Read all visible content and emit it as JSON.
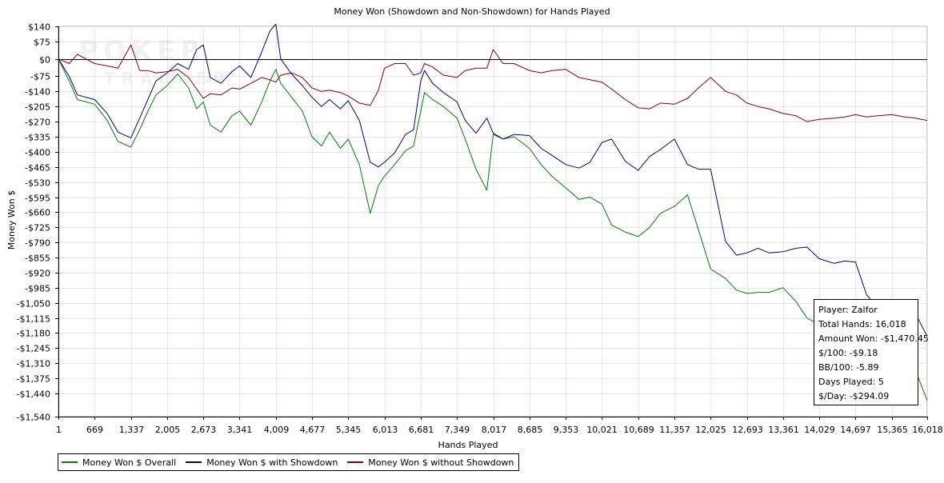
{
  "chart_data": {
    "type": "line",
    "title": "Money Won (Showdown and Non-Showdown) for Hands Played",
    "xlabel": "Hands Played",
    "ylabel": "Money Won $",
    "xlim": [
      1,
      16018
    ],
    "ylim": [
      -1540,
      140
    ],
    "x_ticks": [
      1,
      669,
      1337,
      2005,
      2673,
      3341,
      4009,
      4677,
      5345,
      6013,
      6681,
      7349,
      8017,
      8685,
      9353,
      10021,
      10689,
      11357,
      12025,
      12693,
      13361,
      14029,
      14697,
      15365,
      16018
    ],
    "x_tick_labels": [
      "1",
      "669",
      "1,337",
      "2,005",
      "2,673",
      "3,341",
      "4,009",
      "4,677",
      "5,345",
      "6,013",
      "6,681",
      "7,349",
      "8,017",
      "8,685",
      "9,353",
      "10,021",
      "10,689",
      "11,357",
      "12,025",
      "12,693",
      "13,361",
      "14,029",
      "14,697",
      "15,365",
      "16,018"
    ],
    "y_ticks": [
      140,
      75,
      0,
      -75,
      -140,
      -205,
      -270,
      -335,
      -400,
      -465,
      -530,
      -595,
      -660,
      -725,
      -790,
      -855,
      -920,
      -985,
      -1050,
      -1115,
      -1180,
      -1245,
      -1310,
      -1375,
      -1440,
      -1540
    ],
    "y_tick_labels": [
      "$140",
      "$75",
      "$0",
      "-$75",
      "-$140",
      "-$205",
      "-$270",
      "-$335",
      "-$400",
      "-$465",
      "-$530",
      "-$595",
      "-$660",
      "-$725",
      "-$790",
      "-$855",
      "-$920",
      "-$985",
      "-$1,050",
      "-$1,115",
      "-$1,180",
      "-$1,245",
      "-$1,310",
      "-$1,375",
      "-$1,440",
      "-$1,540"
    ],
    "grid": true,
    "legend_position": "bottom-left",
    "series": [
      {
        "name": "Money Won $ Overall",
        "color": "#008000",
        "x": [
          1,
          200,
          350,
          669,
          900,
          1100,
          1337,
          1500,
          1650,
          1800,
          2005,
          2200,
          2400,
          2550,
          2673,
          2800,
          3000,
          3200,
          3341,
          3550,
          3750,
          3900,
          4009,
          4100,
          4300,
          4500,
          4677,
          4850,
          5000,
          5200,
          5345,
          5550,
          5750,
          5900,
          6013,
          6200,
          6400,
          6550,
          6681,
          6750,
          6900,
          7100,
          7349,
          7500,
          7700,
          7900,
          8017,
          8200,
          8400,
          8685,
          8900,
          9100,
          9353,
          9600,
          9800,
          10021,
          10200,
          10450,
          10689,
          10900,
          11100,
          11357,
          11600,
          11800,
          12025,
          12300,
          12500,
          12693,
          12900,
          13100,
          13361,
          13600,
          13800,
          14029,
          14300,
          14500,
          14697,
          14900,
          15100,
          15365,
          15600,
          15800,
          16018
        ],
        "values": [
          0,
          -95,
          -175,
          -195,
          -265,
          -355,
          -380,
          -305,
          -225,
          -155,
          -115,
          -65,
          -125,
          -215,
          -185,
          -285,
          -315,
          -245,
          -225,
          -285,
          -185,
          -95,
          -45,
          -105,
          -165,
          -225,
          -335,
          -375,
          -315,
          -385,
          -345,
          -455,
          -665,
          -545,
          -505,
          -455,
          -395,
          -375,
          -225,
          -145,
          -175,
          -205,
          -255,
          -345,
          -475,
          -565,
          -325,
          -345,
          -335,
          -385,
          -455,
          -505,
          -555,
          -605,
          -595,
          -625,
          -715,
          -745,
          -765,
          -725,
          -665,
          -635,
          -585,
          -735,
          -905,
          -945,
          -995,
          -1010,
          -1005,
          -1005,
          -985,
          -1045,
          -1115,
          -1145,
          -1185,
          -1205,
          -1215,
          -1235,
          -1250,
          -1265,
          -1290,
          -1340,
          -1470.45
        ]
      },
      {
        "name": "Money Won $ with Showdown",
        "color": "#00008b",
        "x": [
          1,
          200,
          350,
          669,
          900,
          1100,
          1337,
          1500,
          1650,
          1800,
          2005,
          2200,
          2400,
          2550,
          2673,
          2800,
          3000,
          3200,
          3341,
          3550,
          3750,
          3900,
          4009,
          4100,
          4300,
          4500,
          4677,
          4850,
          5000,
          5200,
          5345,
          5550,
          5750,
          5900,
          6013,
          6200,
          6400,
          6550,
          6681,
          6750,
          6900,
          7100,
          7349,
          7500,
          7700,
          7900,
          8017,
          8200,
          8400,
          8685,
          8900,
          9100,
          9353,
          9600,
          9800,
          10021,
          10200,
          10450,
          10689,
          10900,
          11100,
          11357,
          11600,
          11800,
          12025,
          12300,
          12500,
          12693,
          12900,
          13100,
          13361,
          13600,
          13800,
          14029,
          14300,
          14500,
          14697,
          14900,
          15100,
          15365,
          15600,
          15800,
          16018
        ],
        "values": [
          0,
          -75,
          -155,
          -175,
          -235,
          -315,
          -340,
          -255,
          -175,
          -95,
          -60,
          -20,
          -45,
          40,
          60,
          -80,
          -105,
          -55,
          -30,
          -80,
          30,
          120,
          150,
          0,
          -65,
          -115,
          -165,
          -205,
          -175,
          -215,
          -180,
          -265,
          -445,
          -465,
          -445,
          -405,
          -325,
          -305,
          -95,
          -50,
          -105,
          -145,
          -185,
          -265,
          -320,
          -255,
          -320,
          -345,
          -325,
          -330,
          -385,
          -415,
          -455,
          -470,
          -445,
          -360,
          -345,
          -440,
          -480,
          -420,
          -390,
          -345,
          -455,
          -475,
          -475,
          -785,
          -845,
          -835,
          -815,
          -835,
          -830,
          -815,
          -810,
          -860,
          -880,
          -870,
          -875,
          -1015,
          -1070,
          -1080,
          -1085,
          -1095,
          -1195
        ]
      },
      {
        "name": "Money Won $ without Showdown",
        "color": "#8b0000",
        "x": [
          1,
          200,
          350,
          669,
          900,
          1100,
          1337,
          1500,
          1650,
          1800,
          2005,
          2200,
          2400,
          2550,
          2673,
          2800,
          3000,
          3200,
          3341,
          3550,
          3750,
          3900,
          4009,
          4100,
          4300,
          4500,
          4677,
          4850,
          5000,
          5200,
          5345,
          5550,
          5750,
          5900,
          6013,
          6200,
          6400,
          6550,
          6681,
          6750,
          6900,
          7100,
          7349,
          7500,
          7700,
          7900,
          8017,
          8200,
          8400,
          8685,
          8900,
          9100,
          9353,
          9600,
          9800,
          10021,
          10200,
          10450,
          10689,
          10900,
          11100,
          11357,
          11600,
          11800,
          12025,
          12300,
          12500,
          12693,
          12900,
          13100,
          13361,
          13600,
          13800,
          14029,
          14300,
          14500,
          14697,
          14900,
          15100,
          15365,
          15600,
          15800,
          16018
        ],
        "values": [
          0,
          -20,
          20,
          -20,
          -30,
          -40,
          60,
          -50,
          -50,
          -60,
          -55,
          -45,
          -80,
          -130,
          -170,
          -150,
          -155,
          -125,
          -130,
          -105,
          -80,
          -90,
          -100,
          -70,
          -60,
          -80,
          -125,
          -140,
          -135,
          -145,
          -160,
          -190,
          -200,
          -135,
          -40,
          -20,
          -20,
          -70,
          -60,
          -20,
          -35,
          -70,
          -80,
          -50,
          -40,
          -40,
          40,
          -20,
          -20,
          -50,
          -60,
          -50,
          -45,
          -80,
          -90,
          -100,
          -130,
          -175,
          -210,
          -215,
          -190,
          -195,
          -170,
          -125,
          -80,
          -140,
          -155,
          -190,
          -205,
          -215,
          -235,
          -245,
          -270,
          -260,
          -255,
          -250,
          -240,
          -250,
          -245,
          -240,
          -250,
          -255,
          -265
        ]
      }
    ]
  },
  "info_box": {
    "player": "Player: Zalfor",
    "total_hands": "Total Hands: 16,018",
    "amount_won": "Amount Won: -$1,470.45",
    "per_100": "$/100: -$9.18",
    "bb_per_100": "BB/100: -5.89",
    "days_played": "Days Played: 5",
    "per_day": "$/Day: -$294.09"
  },
  "watermark": {
    "line1": "POKER",
    "line2": "TRACKER"
  }
}
